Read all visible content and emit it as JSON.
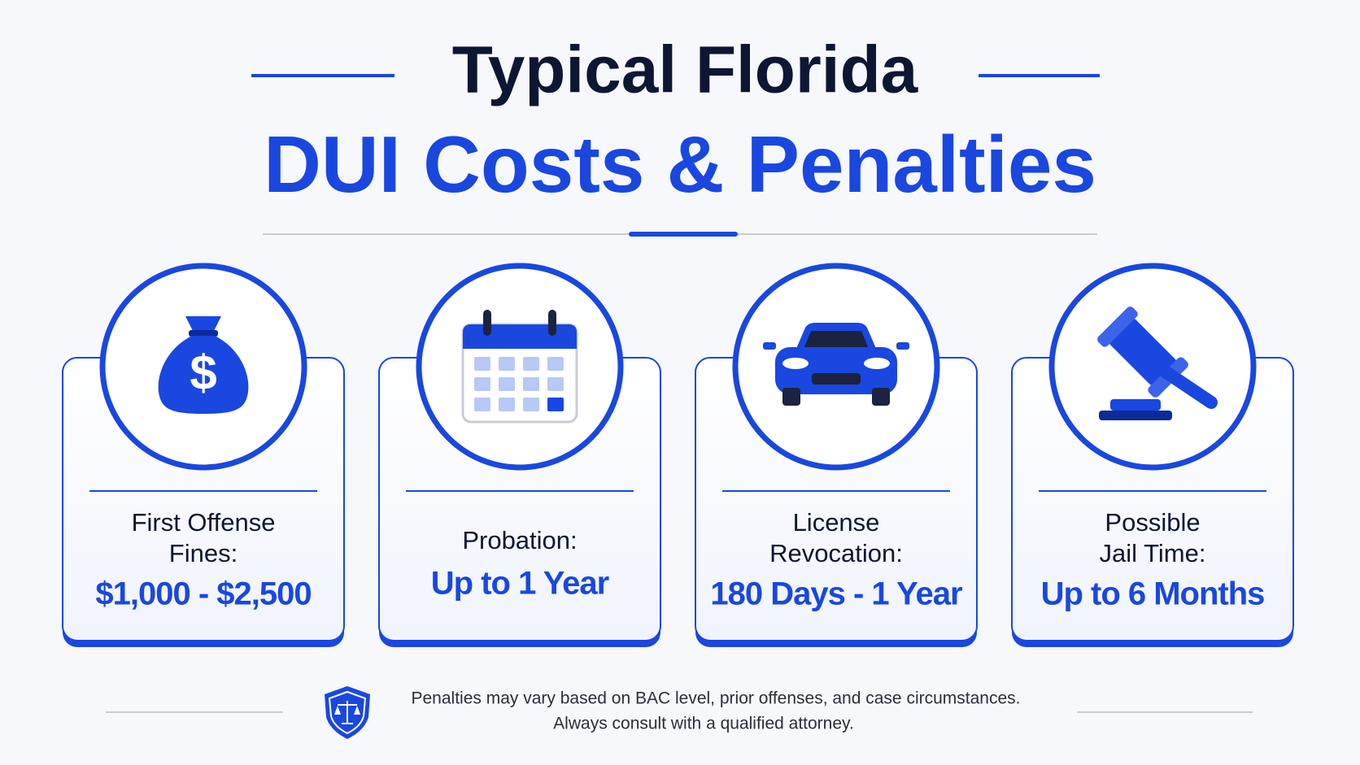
{
  "header": {
    "title_line1": "Typical Florida",
    "title_line2": "DUI Costs & Penalties"
  },
  "cards": [
    {
      "label_lines": [
        "First Offense",
        "Fines:"
      ],
      "value": "$1,000 - $2,500"
    },
    {
      "label_lines": [
        "Probation:"
      ],
      "value": "Up to 1 Year"
    },
    {
      "label_lines": [
        "License",
        "Revocation:"
      ],
      "value": "180 Days - 1 Year"
    },
    {
      "label_lines": [
        "Possible",
        "Jail Time:"
      ],
      "value": "Up to 6 Months"
    }
  ],
  "footer": {
    "line1": "Penalties may vary based on BAC level, prior offenses, and case circumstances.",
    "line2": "Always consult with a qualified attorney."
  }
}
